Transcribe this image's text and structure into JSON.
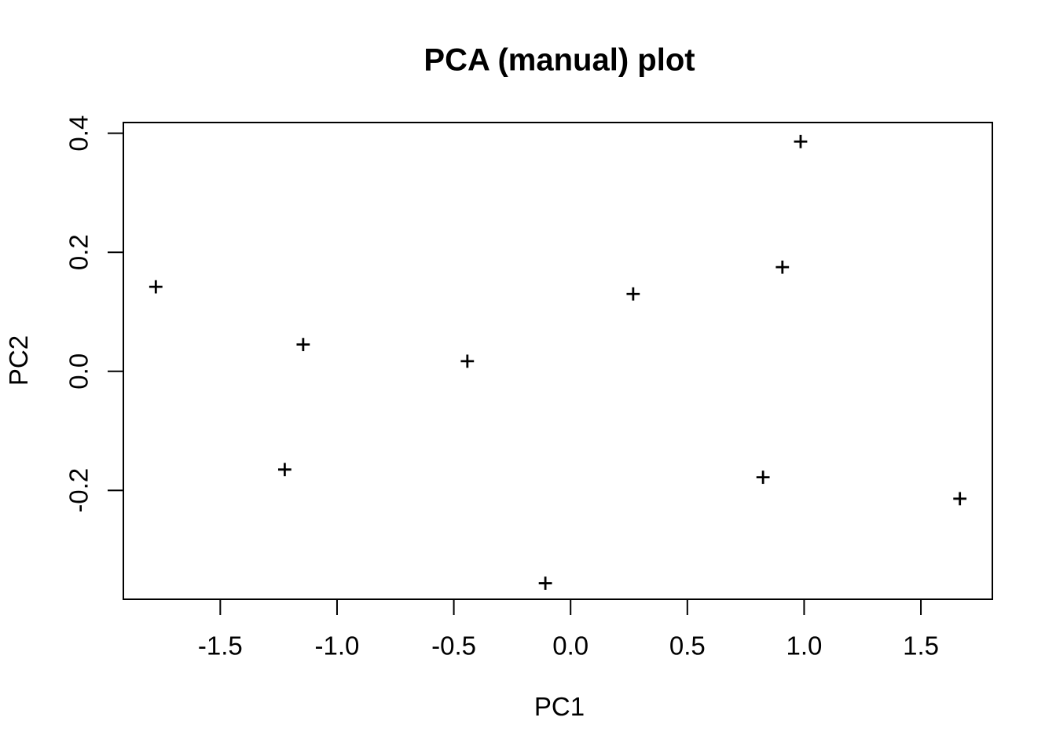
{
  "figure": {
    "background": "#ffffff",
    "foreground": "#000000"
  },
  "chart_data": {
    "type": "scatter",
    "title": "PCA (manual) plot",
    "xlabel": "PC1",
    "ylabel": "PC2",
    "marker": "plus",
    "color": "#000000",
    "background": "#ffffff",
    "grid": false,
    "legend": false,
    "xlim": [
      -1.915,
      1.806
    ],
    "ylim": [
      -0.383,
      0.418
    ],
    "x_ticks": [
      {
        "value": -1.5,
        "label": "-1.5"
      },
      {
        "value": -1.0,
        "label": "-1.0"
      },
      {
        "value": -0.5,
        "label": "-0.5"
      },
      {
        "value": 0.0,
        "label": "0.0"
      },
      {
        "value": 0.5,
        "label": "0.5"
      },
      {
        "value": 1.0,
        "label": "1.0"
      },
      {
        "value": 1.5,
        "label": "1.5"
      }
    ],
    "y_ticks": [
      {
        "value": -0.2,
        "label": "-0.2"
      },
      {
        "value": 0.0,
        "label": "0.0"
      },
      {
        "value": 0.2,
        "label": "0.2"
      },
      {
        "value": 0.4,
        "label": "0.4"
      }
    ],
    "points": [
      {
        "x": -1.776,
        "y": 0.142
      },
      {
        "x": -1.145,
        "y": 0.045
      },
      {
        "x": -1.224,
        "y": -0.165
      },
      {
        "x": -0.442,
        "y": 0.017
      },
      {
        "x": -0.108,
        "y": -0.356
      },
      {
        "x": 0.268,
        "y": 0.13
      },
      {
        "x": 0.824,
        "y": -0.178
      },
      {
        "x": 0.907,
        "y": 0.175
      },
      {
        "x": 0.985,
        "y": 0.386
      },
      {
        "x": 1.667,
        "y": -0.214
      }
    ]
  }
}
